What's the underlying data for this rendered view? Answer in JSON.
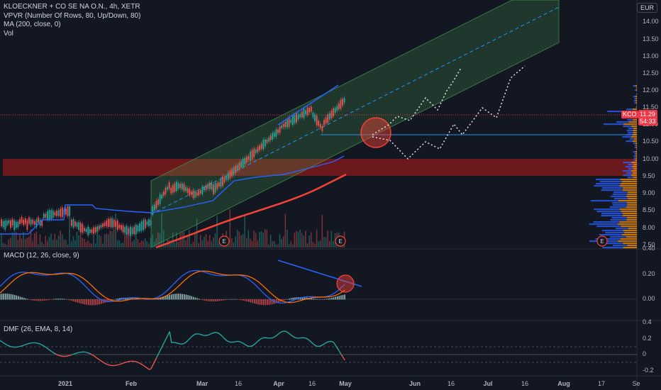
{
  "header": {
    "symbol_title": "KLOECKNER + CO SE NA O.N., 4h, XETR",
    "indicator_vpvr": "VPVR (Number Of Rows, 80, Up/Down, 80)",
    "indicator_ma": "MA (200, close, 0)",
    "indicator_vol": "Vol",
    "currency": "EUR"
  },
  "price_axis": {
    "labels": [
      "14.00",
      "13.50",
      "13.00",
      "12.50",
      "12.00",
      "11.50",
      "11.00",
      "10.50",
      "10.00",
      "9.50",
      "9.00",
      "8.50",
      "8.00",
      "7.50"
    ],
    "last_price": "11.29",
    "countdown": "54:33",
    "ticker_short": "KCO"
  },
  "macd": {
    "label": "MACD (12, 26, close, 9)",
    "axis": [
      "0.40",
      "0.20",
      "0.00"
    ]
  },
  "dmf": {
    "label": "DMF (26, EMA, 8, 14)",
    "axis": [
      "0.4",
      "0.2",
      "0",
      "-0.2"
    ]
  },
  "time_axis": {
    "labels": [
      "2021",
      "Feb",
      "Mar",
      "16",
      "Apr",
      "16",
      "May",
      "Jun",
      "16",
      "Jul",
      "16",
      "Aug",
      "17",
      "Se"
    ]
  },
  "markers": {
    "earnings": "E"
  },
  "colors": {
    "background": "#131722",
    "channel_fill": "#4caf50",
    "resistance_zone": "#b71c1c",
    "ma_line": "#f44336",
    "trend_line": "#2962ff",
    "macd_line": "#2962ff",
    "signal_line": "#ff6d00",
    "dmf_up": "#26a69a",
    "dmf_down": "#ef5350"
  }
}
